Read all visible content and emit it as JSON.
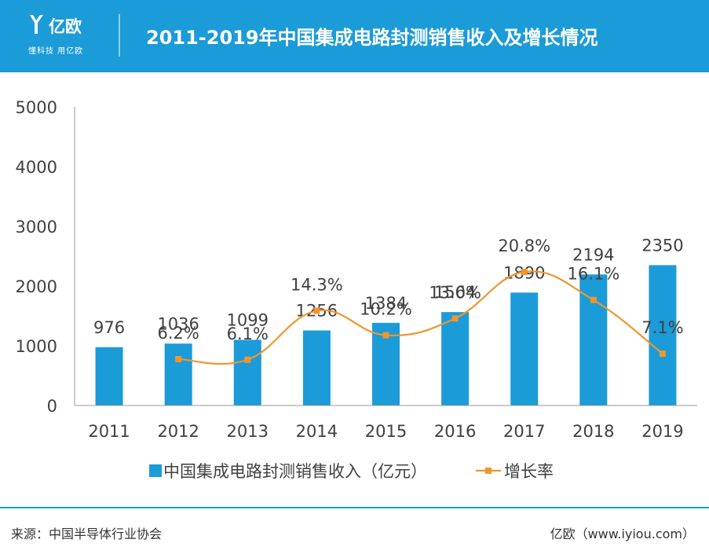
{
  "header": {
    "logo_text": "亿欧",
    "logo_slogan": "懂科技 用亿欧",
    "title": "2011-2019年中国集成电路封测销售收入及增长情况"
  },
  "chart_data": {
    "type": "bar",
    "categories": [
      "2011",
      "2012",
      "2013",
      "2014",
      "2015",
      "2016",
      "2017",
      "2018",
      "2019"
    ],
    "series": [
      {
        "name": "中国集成电路封测销售收入（亿元）",
        "type": "bar",
        "color": "#1b9bd7",
        "values": [
          976,
          1036,
          1099,
          1256,
          1384,
          1564,
          1890,
          2194,
          2350
        ],
        "labels": [
          "976",
          "1036",
          "1099",
          "1256",
          "1384",
          "1564",
          "1890",
          "2194",
          "2350"
        ]
      },
      {
        "name": "增长率",
        "type": "line",
        "color": "#f0952d",
        "values": [
          null,
          6.2,
          6.1,
          14.3,
          10.2,
          13.0,
          20.8,
          16.1,
          7.1
        ],
        "labels": [
          "",
          "6.2%",
          "6.1%",
          "14.3%",
          "10.2%",
          "13.0%",
          "20.8%",
          "16.1%",
          "7.1%"
        ]
      }
    ],
    "yticks": [
      "0",
      "1000",
      "2000",
      "3000",
      "4000",
      "5000"
    ],
    "ylim": [
      0,
      5000
    ],
    "legend": "bottom",
    "grid": false
  },
  "footer": {
    "source": "来源：中国半导体行业协会",
    "brand": "亿欧（www.iyiou.com）"
  }
}
